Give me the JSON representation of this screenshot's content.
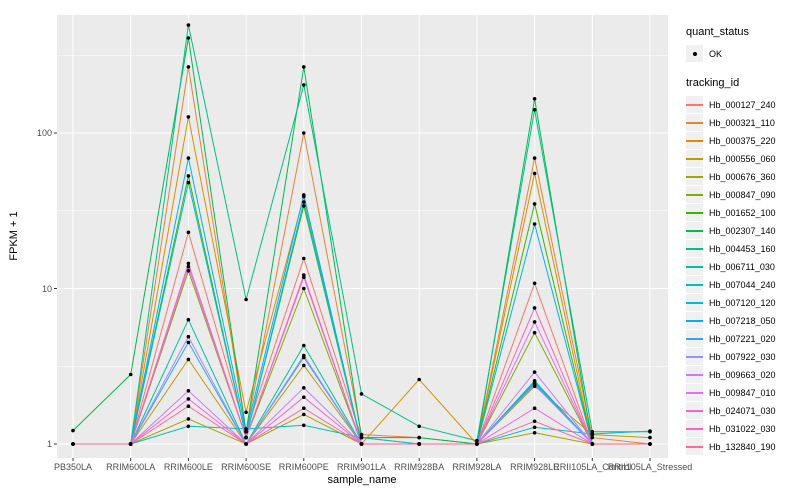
{
  "chart_data": {
    "type": "line",
    "title": "",
    "xlabel": "sample_name",
    "ylabel": "FPKM + 1",
    "y_scale": "log10",
    "ylim": [
      1,
      600
    ],
    "y_ticks": [
      1,
      10,
      100
    ],
    "y_minor_ticks": [
      3.162,
      31.62,
      316.2
    ],
    "grid": "on",
    "legend_position": "right",
    "panel_bg": "#EBEBEB",
    "grid_color": "#FFFFFF",
    "point_color": "#000000",
    "categories": [
      "PB350LA",
      "RRIM600LA",
      "RRIM600LE",
      "RRIM600SE",
      "RRIM600PE",
      "RRIM901LA",
      "RRIM928BA",
      "RRIM928LA",
      "RRIM928LE",
      "RRII105LA_Control",
      "RRII105LA_Stressed"
    ],
    "series": [
      {
        "name": "Hb_000127_240",
        "color": "#F8766D",
        "values": [
          1,
          1,
          23,
          1.2,
          15.6,
          1.1,
          1,
          1,
          10.8,
          1,
          1
        ]
      },
      {
        "name": "Hb_000321_110",
        "color": "#EA8331",
        "values": [
          1,
          1,
          266,
          1.2,
          100,
          1.15,
          1.1,
          1,
          69,
          1.1,
          1
        ]
      },
      {
        "name": "Hb_000375_220",
        "color": "#D89000",
        "values": [
          1,
          1,
          127,
          1.6,
          39,
          1,
          2.6,
          1,
          55,
          1,
          1
        ]
      },
      {
        "name": "Hb_000556_060",
        "color": "#C09B00",
        "values": [
          1,
          1,
          3.5,
          1,
          3.2,
          1,
          1,
          1,
          2.35,
          1.15,
          1.1
        ]
      },
      {
        "name": "Hb_000676_360",
        "color": "#A3A500",
        "values": [
          1,
          1,
          1.45,
          1,
          1.55,
          1,
          1,
          1,
          1.18,
          1,
          1
        ]
      },
      {
        "name": "Hb_000847_090",
        "color": "#7CAE00",
        "values": [
          1,
          1,
          13,
          1.1,
          10,
          1,
          1,
          1,
          5.2,
          1,
          1
        ]
      },
      {
        "name": "Hb_001652_100",
        "color": "#39B600",
        "values": [
          1,
          1,
          53,
          1.1,
          34,
          1,
          1,
          1,
          35,
          1,
          1
        ]
      },
      {
        "name": "Hb_002307_140",
        "color": "#00BB4E",
        "values": [
          1.22,
          2.8,
          408,
          1.2,
          266,
          1.1,
          1.1,
          1,
          166,
          1,
          1
        ]
      },
      {
        "name": "Hb_004453_160",
        "color": "#00C087",
        "values": [
          1,
          1,
          494,
          8.5,
          204,
          2.1,
          1.3,
          1.05,
          141,
          1.2,
          1.2
        ]
      },
      {
        "name": "Hb_006711_030",
        "color": "#00C1A3",
        "values": [
          1,
          1,
          6.3,
          1,
          4.3,
          1,
          1,
          1,
          2.55,
          1,
          1
        ]
      },
      {
        "name": "Hb_007044_240",
        "color": "#00BFC4",
        "values": [
          1,
          1,
          1.3,
          1.25,
          1.32,
          1.1,
          1,
          1,
          1.28,
          1.16,
          1.21
        ]
      },
      {
        "name": "Hb_007120_120",
        "color": "#00BAE0",
        "values": [
          1,
          1,
          48,
          1.1,
          36,
          1,
          1,
          1,
          2.5,
          1,
          1
        ]
      },
      {
        "name": "Hb_007218_050",
        "color": "#00B0F6",
        "values": [
          1,
          1,
          69,
          1.2,
          40,
          1,
          1,
          1,
          26,
          1,
          1
        ]
      },
      {
        "name": "Hb_007221_020",
        "color": "#35A2FF",
        "values": [
          1,
          1,
          4.5,
          1,
          3.6,
          1,
          1,
          1,
          2.45,
          1,
          1
        ]
      },
      {
        "name": "Hb_007922_030",
        "color": "#9590FF",
        "values": [
          1,
          1,
          4.9,
          1,
          3.7,
          1,
          1,
          1,
          2.4,
          1,
          1
        ]
      },
      {
        "name": "Hb_009663_020",
        "color": "#C77CFF",
        "values": [
          1,
          1,
          2.2,
          1,
          2.3,
          1,
          1,
          1,
          2.9,
          1,
          1
        ]
      },
      {
        "name": "Hb_009847_010",
        "color": "#E76BF3",
        "values": [
          1,
          1,
          13.8,
          1.1,
          11.8,
          1,
          1,
          1,
          6.1,
          1,
          1
        ]
      },
      {
        "name": "Hb_024071_030",
        "color": "#FA62DB",
        "values": [
          1,
          1,
          1.95,
          1,
          2.0,
          1,
          1,
          1,
          1.7,
          1,
          1
        ]
      },
      {
        "name": "Hb_031022_030",
        "color": "#FF62BC",
        "values": [
          1,
          1,
          14.5,
          1.1,
          12.2,
          1,
          1,
          1,
          7.5,
          1,
          1
        ]
      },
      {
        "name": "Hb_132840_190",
        "color": "#FF6A98",
        "values": [
          1,
          1,
          1.75,
          1,
          1.7,
          1,
          1,
          1,
          1.4,
          1,
          1
        ]
      }
    ]
  },
  "legend": {
    "quant_status_title": "quant_status",
    "quant_status_items": [
      {
        "label": "OK"
      }
    ],
    "tracking_title": "tracking_id"
  }
}
